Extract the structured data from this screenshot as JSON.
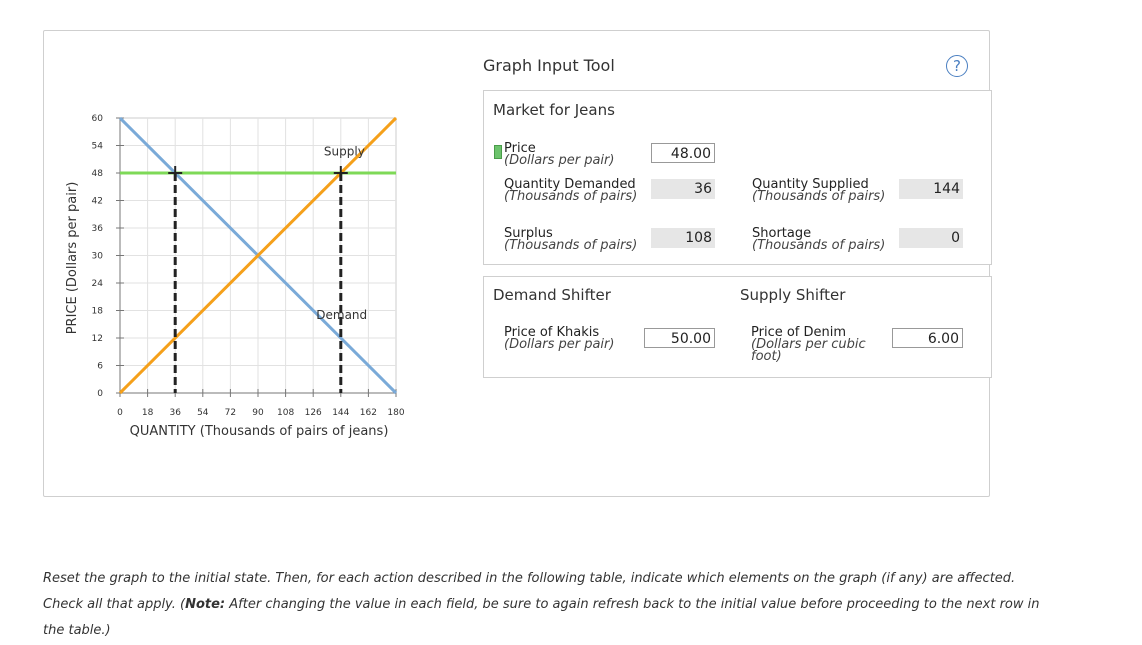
{
  "tool_title": "Graph Input Tool",
  "help_icon": "?",
  "market": {
    "title": "Market for Jeans",
    "price_label": "Price",
    "price_unit": "(Dollars per pair)",
    "price_value": "48.00",
    "qd_label": "Quantity Demanded",
    "qd_unit": "(Thousands of pairs)",
    "qd_value": "36",
    "qs_label": "Quantity Supplied",
    "qs_unit": "(Thousands of pairs)",
    "qs_value": "144",
    "surplus_label": "Surplus",
    "surplus_unit": "(Thousands of pairs)",
    "surplus_value": "108",
    "shortage_label": "Shortage",
    "shortage_unit": "(Thousands of pairs)",
    "shortage_value": "0"
  },
  "shifters": {
    "demand_title": "Demand Shifter",
    "supply_title": "Supply Shifter",
    "khakis_label": "Price of Khakis",
    "khakis_unit": "(Dollars per pair)",
    "khakis_value": "50.00",
    "denim_label": "Price of Denim",
    "denim_unit": "(Dollars per cubic foot)",
    "denim_value": "6.00"
  },
  "instructions": {
    "line1": "Reset the graph to the initial state. Then, for each action described in the following table, indicate which elements on the graph (if any) are affected.",
    "line2_pre": "Check all that apply. (",
    "note_label": "Note:",
    "line2_post": " After changing the value in each field, be sure to again refresh back to the initial value before proceeding to the next row in the table.)"
  },
  "colors": {
    "demand": "#7aaad8",
    "supply": "#f5a01a",
    "price_line": "#7ed957",
    "dashed": "#222222"
  },
  "chart_data": {
    "type": "line",
    "xlabel": "QUANTITY (Thousands of pairs of jeans)",
    "ylabel": "PRICE (Dollars per pair)",
    "xlim": [
      0,
      180
    ],
    "ylim": [
      0,
      60
    ],
    "xticks": [
      0,
      18,
      36,
      54,
      72,
      90,
      108,
      126,
      144,
      162,
      180
    ],
    "yticks": [
      0,
      6,
      12,
      18,
      24,
      30,
      36,
      42,
      48,
      54,
      60
    ],
    "series": [
      {
        "name": "Demand",
        "points": [
          [
            0,
            60
          ],
          [
            180,
            0
          ]
        ]
      },
      {
        "name": "Supply",
        "points": [
          [
            0,
            0
          ],
          [
            180,
            60
          ]
        ]
      }
    ],
    "price_line": 48,
    "markers": [
      [
        36,
        48
      ],
      [
        144,
        48
      ]
    ],
    "dashed_verticals": [
      36,
      144
    ]
  }
}
